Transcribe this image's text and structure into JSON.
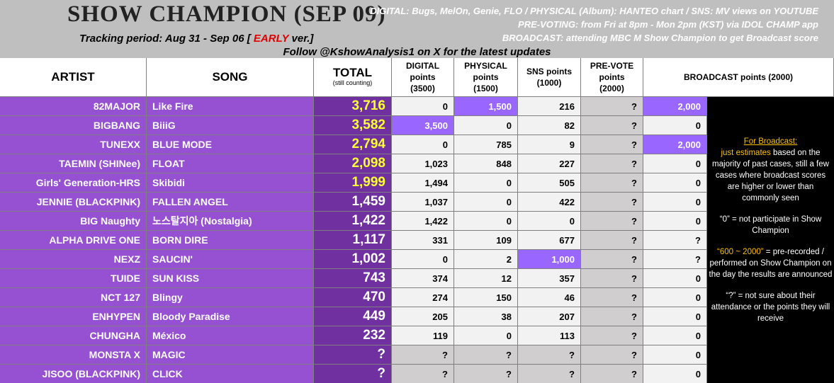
{
  "header": {
    "title": "SHOW CHAMPION (SEP 09)",
    "tracking_prefix": "Tracking period: Aug 31 - Sep 06 [",
    "tracking_flag": "EARLY",
    "tracking_suffix": "ver.]",
    "info": [
      "DIGITAL:  Bugs, MelOn, Genie, FLO / PHYSICAL (Album):  HANTEO chart / SNS:  MV views on YOUTUBE",
      "PRE-VOTING:  from Fri at 8pm - Mon 2pm (KST) via IDOL CHAMP app",
      "BROADCAST:  attending MBC M Show Champion to get Broadcast score"
    ],
    "follow": "Follow @KshowAnalysis1 on X for the latest updates"
  },
  "table": {
    "columns": [
      "ARTIST",
      "SONG",
      "TOTAL",
      "DIGITAL points (3500)",
      "PHYSICAL points (1500)",
      "SNS points (1000)",
      "PRE-VOTE points (2000)",
      "BROADCAST points (2000)"
    ],
    "total_note": "(still counting)",
    "rows": [
      [
        "82MAJOR",
        "Like Fire",
        "3,716",
        "0",
        "1,500",
        "216",
        "?",
        "2,000"
      ],
      [
        "BIGBANG",
        "BiiiG",
        "3,582",
        "3,500",
        "0",
        "82",
        "?",
        "0"
      ],
      [
        "TUNEXX",
        "BLUE MODE",
        "2,794",
        "0",
        "785",
        "9",
        "?",
        "2,000"
      ],
      [
        "TAEMIN (SHINee)",
        "FLOAT",
        "2,098",
        "1,023",
        "848",
        "227",
        "?",
        "0"
      ],
      [
        "Girls' Generation-HRS",
        "Skibidi",
        "1,999",
        "1,494",
        "0",
        "505",
        "?",
        "0"
      ],
      [
        "JENNIE (BLACKPINK)",
        "FALLEN ANGEL",
        "1,459",
        "1,037",
        "0",
        "422",
        "?",
        "0"
      ],
      [
        "BIG Naughty",
        "노스탈지아 (Nostalgia)",
        "1,422",
        "1,422",
        "0",
        "0",
        "?",
        "0"
      ],
      [
        "ALPHA DRIVE ONE",
        "BORN DIRE",
        "1,117",
        "331",
        "109",
        "677",
        "?",
        "?"
      ],
      [
        "NEXZ",
        "SAUCIN'",
        "1,002",
        "0",
        "2",
        "1,000",
        "?",
        "?"
      ],
      [
        "TUIDE",
        "SUN KISS",
        "743",
        "374",
        "12",
        "357",
        "?",
        "0"
      ],
      [
        "NCT 127",
        "Blingy",
        "470",
        "274",
        "150",
        "46",
        "?",
        "0"
      ],
      [
        "ENHYPEN",
        "Bloody Paradise",
        "449",
        "205",
        "38",
        "207",
        "?",
        "0"
      ],
      [
        "CHUNGHA",
        "México",
        "232",
        "119",
        "0",
        "113",
        "?",
        "0"
      ],
      [
        "MONSTA X",
        "MAGIC",
        "?",
        "?",
        "?",
        "?",
        "?",
        "0"
      ],
      [
        "JISOO (BLACKPINK)",
        "CLICK",
        "?",
        "?",
        "?",
        "?",
        "?",
        "0"
      ]
    ]
  },
  "note": {
    "heading": "For Broadcast:",
    "estimate_lead": "just estimates",
    "estimate_rest": " based on the majority of past cases, still a few cases where broadcast scores are higher or lower than commonly seen",
    "zero_key": "“0”",
    "zero_text": " = not participate in Show Champion",
    "range_key": "“600 ~ 2000”",
    "range_text": " = pre-recorded / performed on Show Champion on the day the results are announced",
    "unknown_text": "“?” = not sure about their attendance or the points they will receive"
  }
}
